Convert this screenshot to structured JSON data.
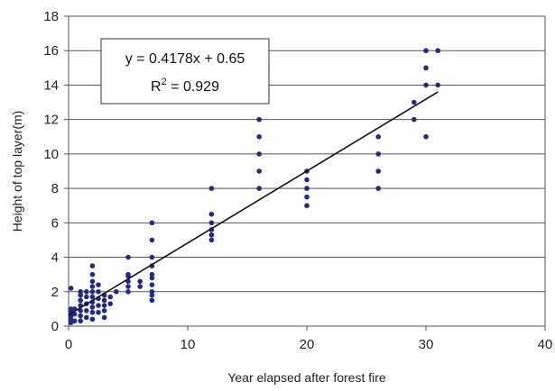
{
  "chart_data": {
    "type": "scatter",
    "title": "",
    "xlabel": "Year elapsed after forest fire",
    "ylabel": "Height of top layer(m)",
    "xlim": [
      0,
      40
    ],
    "ylim": [
      0,
      18
    ],
    "x_ticks": [
      "0",
      "10",
      "20",
      "30",
      "40"
    ],
    "y_ticks": [
      "0",
      "2",
      "4",
      "6",
      "8",
      "10",
      "12",
      "14",
      "16",
      "18"
    ],
    "grid": "horizontal",
    "legend": "none",
    "marker_color": "#1f2a8a",
    "trendline": {
      "slope": 0.4178,
      "intercept": 0.65,
      "x_range": [
        0,
        31
      ],
      "equation_line1": "y = 0.4178x + 0.65",
      "equation_line2": "R",
      "equation_sup": "2",
      "equation_line2_rest": " = 0.929"
    },
    "points": [
      [
        0.2,
        0.2
      ],
      [
        0.2,
        0.4
      ],
      [
        0.2,
        0.6
      ],
      [
        0.2,
        0.8
      ],
      [
        0.2,
        1.0
      ],
      [
        0.2,
        2.2
      ],
      [
        0.5,
        0.3
      ],
      [
        0.5,
        0.7
      ],
      [
        0.5,
        1.0
      ],
      [
        1,
        0.3
      ],
      [
        1,
        0.6
      ],
      [
        1,
        0.9
      ],
      [
        1,
        1.2
      ],
      [
        1,
        1.5
      ],
      [
        1,
        1.8
      ],
      [
        1,
        2.0
      ],
      [
        1.5,
        0.5
      ],
      [
        1.5,
        0.9
      ],
      [
        1.5,
        1.3
      ],
      [
        1.5,
        1.7
      ],
      [
        1.5,
        2.0
      ],
      [
        2,
        0.4
      ],
      [
        2,
        0.8
      ],
      [
        2,
        1.1
      ],
      [
        2,
        1.4
      ],
      [
        2,
        1.7
      ],
      [
        2,
        2.0
      ],
      [
        2,
        2.3
      ],
      [
        2,
        2.6
      ],
      [
        2,
        3.0
      ],
      [
        2,
        3.5
      ],
      [
        2.5,
        0.8
      ],
      [
        2.5,
        1.2
      ],
      [
        2.5,
        1.6
      ],
      [
        2.5,
        2.0
      ],
      [
        2.5,
        2.4
      ],
      [
        3,
        0.5
      ],
      [
        3,
        0.9
      ],
      [
        3,
        1.2
      ],
      [
        3,
        1.5
      ],
      [
        3,
        1.8
      ],
      [
        3.5,
        1.3
      ],
      [
        3.5,
        1.7
      ],
      [
        4,
        2.0
      ],
      [
        5,
        2.0
      ],
      [
        5,
        2.3
      ],
      [
        5,
        2.6
      ],
      [
        5,
        2.9
      ],
      [
        5,
        3.0
      ],
      [
        5,
        4.0
      ],
      [
        6,
        2.3
      ],
      [
        6,
        2.6
      ],
      [
        7,
        1.5
      ],
      [
        7,
        1.8
      ],
      [
        7,
        2.0
      ],
      [
        7,
        2.4
      ],
      [
        7,
        2.8
      ],
      [
        7,
        3.0
      ],
      [
        7,
        3.5
      ],
      [
        7,
        4.0
      ],
      [
        7,
        5.0
      ],
      [
        7,
        6.0
      ],
      [
        12,
        5.0
      ],
      [
        12,
        5.3
      ],
      [
        12,
        5.6
      ],
      [
        12,
        6.0
      ],
      [
        12,
        6.5
      ],
      [
        12,
        8.0
      ],
      [
        16,
        8.0
      ],
      [
        16,
        9.0
      ],
      [
        16,
        10.0
      ],
      [
        16,
        11.0
      ],
      [
        16,
        12.0
      ],
      [
        20,
        7.0
      ],
      [
        20,
        7.5
      ],
      [
        20,
        8.0
      ],
      [
        20,
        8.5
      ],
      [
        20,
        9.0
      ],
      [
        26,
        8.0
      ],
      [
        26,
        9.0
      ],
      [
        26,
        10.0
      ],
      [
        26,
        11.0
      ],
      [
        29,
        12.0
      ],
      [
        29,
        13.0
      ],
      [
        30,
        11.0
      ],
      [
        30,
        14.0
      ],
      [
        30,
        15.0
      ],
      [
        30,
        16.0
      ],
      [
        31,
        14.0
      ],
      [
        31,
        16.0
      ]
    ]
  }
}
